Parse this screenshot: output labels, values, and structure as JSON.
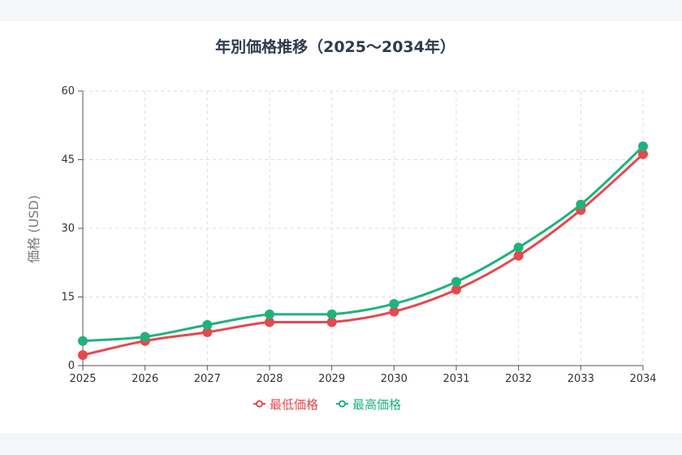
{
  "chart_data": {
    "type": "line",
    "title": "年別価格推移（2025〜2034年）",
    "xlabel": "",
    "ylabel": "価格 (USD)",
    "x": [
      "2025",
      "2026",
      "2027",
      "2028",
      "2029",
      "2030",
      "2031",
      "2032",
      "2033",
      "2034"
    ],
    "ylim": [
      0,
      60
    ],
    "yticks": [
      "0",
      "15",
      "30",
      "45",
      "60"
    ],
    "grid": true,
    "legend_position": "bottom",
    "series": [
      {
        "name": "最低価格",
        "color": "#e5484d",
        "values": [
          2.3,
          5.4,
          7.3,
          9.5,
          9.5,
          11.8,
          16.6,
          24.0,
          34.0,
          46.2
        ]
      },
      {
        "name": "最高価格",
        "color": "#20b27c",
        "values": [
          5.4,
          6.3,
          8.9,
          11.2,
          11.2,
          13.5,
          18.3,
          25.8,
          35.2,
          47.9
        ]
      }
    ]
  }
}
